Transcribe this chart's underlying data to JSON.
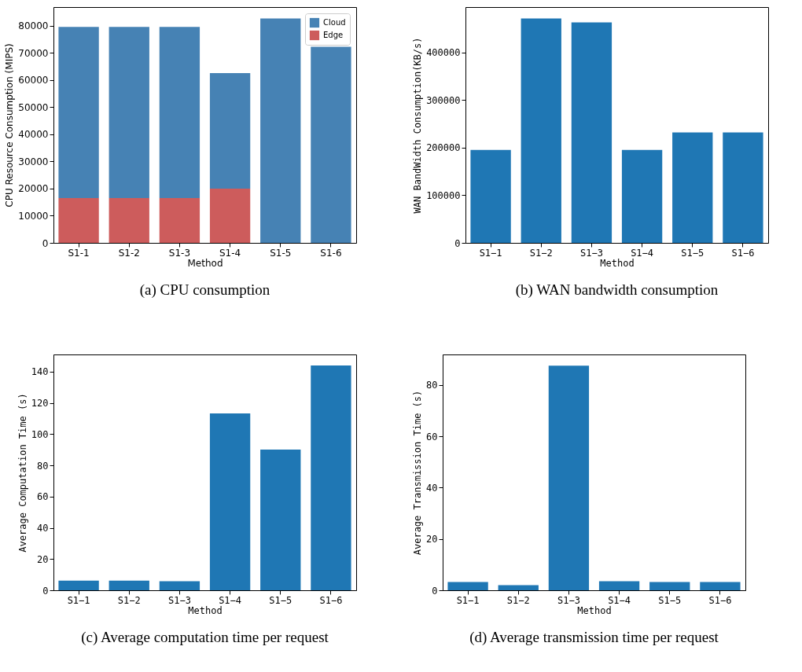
{
  "chart_data": [
    {
      "type": "bar",
      "title": "(a) CPU consumption",
      "xlabel": "Method",
      "ylabel": "CPU Resource Consumption (MIPS)",
      "categories": [
        "S1-1",
        "S1-2",
        "S1-3",
        "S1-4",
        "S1-5",
        "S1-6"
      ],
      "stacked": true,
      "series": [
        {
          "name": "Edge",
          "color": "#cd5c5c",
          "values": [
            16500,
            16500,
            16500,
            20000,
            0,
            0
          ]
        },
        {
          "name": "Cloud",
          "color": "#4682b4",
          "values": [
            63000,
            63000,
            63000,
            42500,
            82600,
            72200
          ]
        }
      ],
      "ylim": [
        0,
        86800
      ],
      "yticks": [
        0,
        10000,
        20000,
        30000,
        40000,
        50000,
        60000,
        70000,
        80000
      ],
      "legend": "top right"
    },
    {
      "type": "bar",
      "title": "(b) WAN bandwidth consumption",
      "xlabel": "Method",
      "ylabel": "WAN BandWidth Consumption(KB/s)",
      "categories": [
        "S1−1",
        "S1−2",
        "S1−3",
        "S1−4",
        "S1−5",
        "S1−6"
      ],
      "series": [
        {
          "color": "#1f77b4",
          "values": [
            195000,
            471000,
            463000,
            195000,
            232000,
            232000
          ]
        }
      ],
      "ylim": [
        0,
        495000
      ],
      "yticks": [
        0,
        100000,
        200000,
        300000,
        400000
      ]
    },
    {
      "type": "bar",
      "title": "(c) Average computation time per request",
      "xlabel": "Method",
      "ylabel": "Average Computation Time (s)",
      "categories": [
        "S1−1",
        "S1−2",
        "S1−3",
        "S1−4",
        "S1−5",
        "S1−6"
      ],
      "series": [
        {
          "color": "#1f77b4",
          "values": [
            6.2,
            6.2,
            5.8,
            113.3,
            90.1,
            143.9
          ]
        }
      ],
      "ylim": [
        0,
        151
      ],
      "yticks": [
        0,
        20,
        40,
        60,
        80,
        100,
        120,
        140
      ]
    },
    {
      "type": "bar",
      "title": "(d) Average transmission time per request",
      "xlabel": "Method",
      "ylabel": "Average Transmission Time (s)",
      "categories": [
        "S1−1",
        "S1−2",
        "S1−3",
        "S1−4",
        "S1−5",
        "S1−6"
      ],
      "series": [
        {
          "color": "#1f77b4",
          "values": [
            3.2,
            2.0,
            87.5,
            3.5,
            3.2,
            3.2
          ]
        }
      ],
      "ylim": [
        0,
        91.9
      ],
      "yticks": [
        0,
        20,
        40,
        60,
        80
      ]
    }
  ]
}
